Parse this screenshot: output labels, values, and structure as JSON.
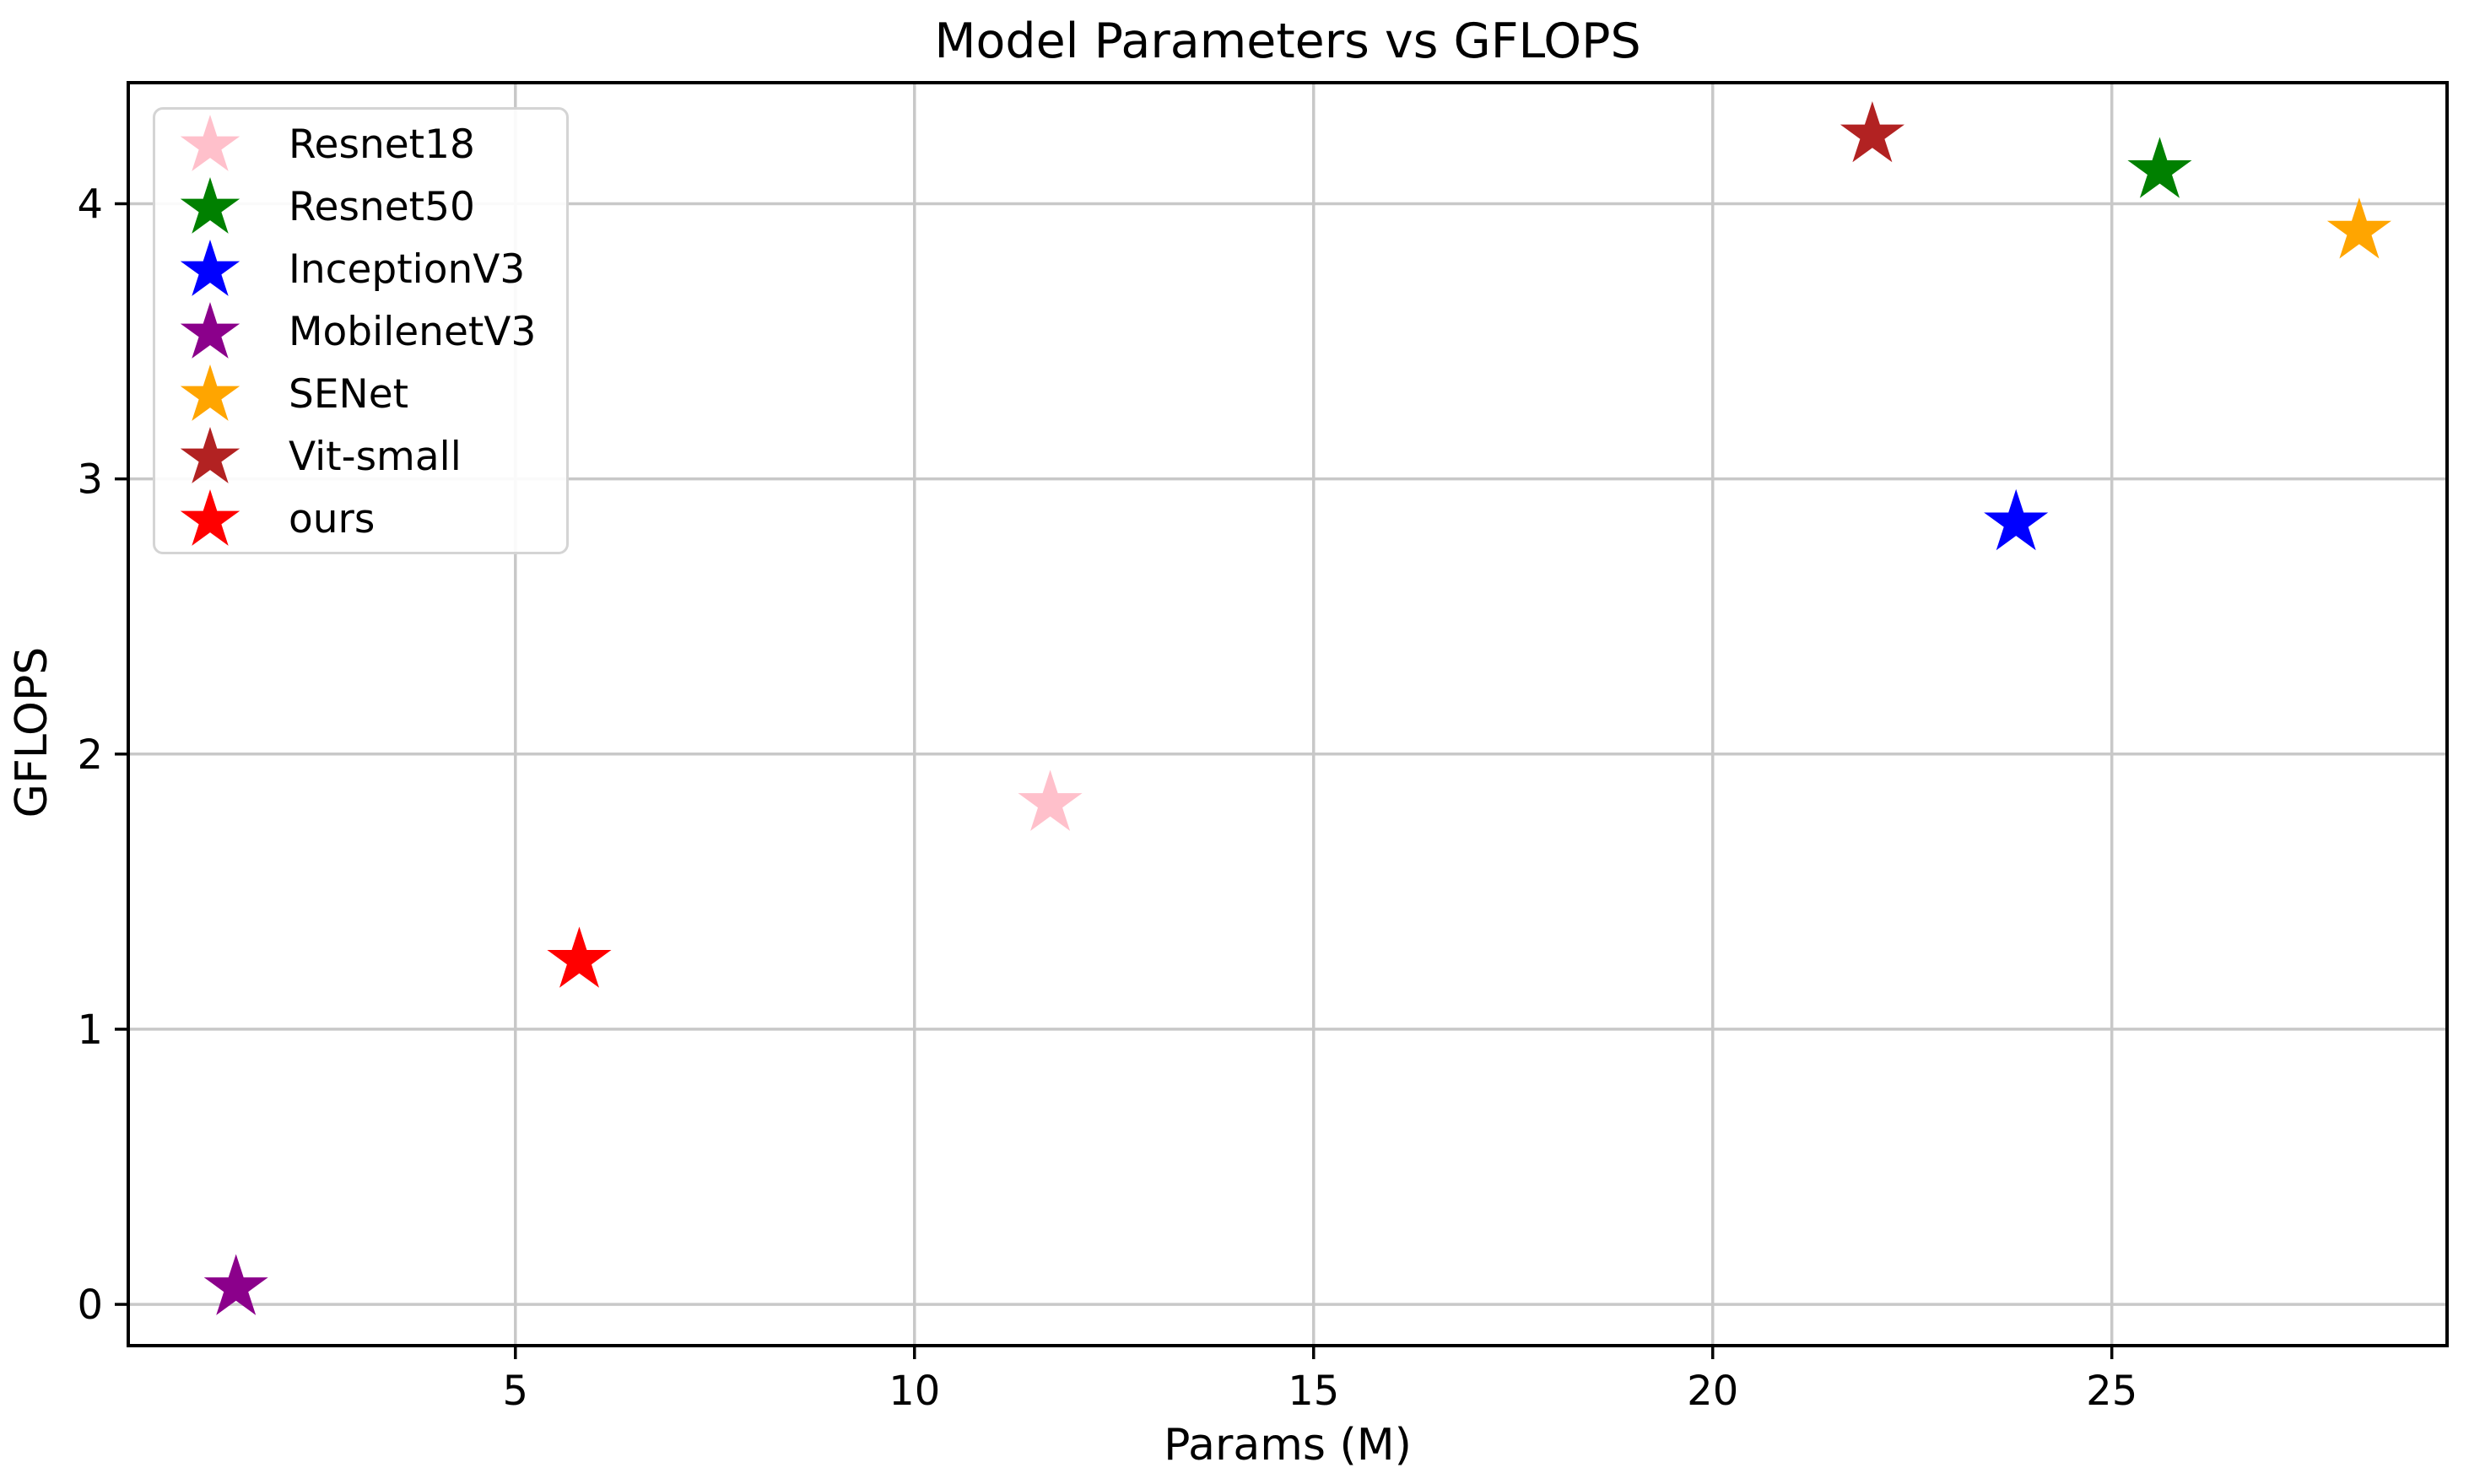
{
  "figure": {
    "title": "Model Parameters vs GFLOPS",
    "xlabel": "Params (M)",
    "ylabel": "GFLOPS"
  },
  "chart_data": {
    "type": "scatter",
    "title": "Model Parameters vs GFLOPS",
    "xlabel": "Params (M)",
    "ylabel": "GFLOPS",
    "marker": "star",
    "grid": true,
    "legend_position": "upper left",
    "xlim": [
      0.15,
      29.2
    ],
    "ylim": [
      -0.15,
      4.44
    ],
    "x_ticks": [
      5,
      10,
      15,
      20,
      25
    ],
    "y_ticks": [
      0,
      1,
      2,
      3,
      4
    ],
    "series": [
      {
        "name": "Resnet18",
        "color": "#FFC0CB",
        "x": 11.7,
        "y": 1.82
      },
      {
        "name": "Resnet50",
        "color": "#008000",
        "x": 25.6,
        "y": 4.12
      },
      {
        "name": "InceptionV3",
        "color": "#0000FF",
        "x": 23.8,
        "y": 2.84
      },
      {
        "name": "MobilenetV3",
        "color": "#8B008B",
        "x": 1.5,
        "y": 0.06
      },
      {
        "name": "SENet",
        "color": "#FFA500",
        "x": 28.1,
        "y": 3.9
      },
      {
        "name": "Vit-small",
        "color": "#B22222",
        "x": 22.0,
        "y": 4.25
      },
      {
        "name": "ours",
        "color": "#FF0000",
        "x": 5.8,
        "y": 1.25
      }
    ],
    "colors": {
      "grid": "#c8c8c8",
      "spine": "#000000",
      "text": "#000000",
      "background": "#ffffff"
    }
  }
}
